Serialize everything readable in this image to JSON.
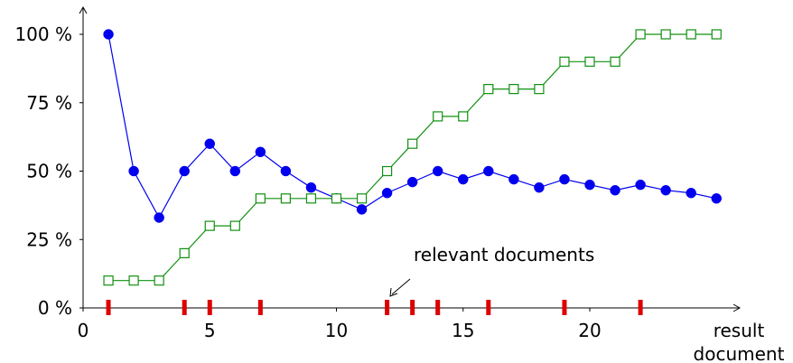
{
  "chart_data": {
    "type": "line",
    "x": [
      1,
      2,
      3,
      4,
      5,
      6,
      7,
      8,
      9,
      10,
      11,
      12,
      13,
      14,
      15,
      16,
      17,
      18,
      19,
      20,
      21,
      22,
      23,
      24,
      25
    ],
    "series": [
      {
        "color": "#0000ee",
        "marker": "filled-circle",
        "values": [
          100,
          50,
          33,
          50,
          60,
          50,
          57,
          50,
          44,
          40,
          36,
          42,
          46,
          50,
          47,
          50,
          47,
          44,
          47,
          45,
          43,
          45,
          43,
          42,
          40
        ]
      },
      {
        "color": "#109010",
        "marker": "open-square",
        "values": [
          10,
          10,
          10,
          20,
          30,
          30,
          40,
          40,
          40,
          40,
          40,
          50,
          60,
          70,
          70,
          80,
          80,
          80,
          90,
          90,
          90,
          100,
          100,
          100,
          100
        ]
      }
    ],
    "relevant_documents": [
      1,
      4,
      5,
      7,
      12,
      13,
      14,
      16,
      19,
      22
    ],
    "relevant_marker_color": "#dd0000",
    "annotation": "relevant documents",
    "xlabel_line1": "result",
    "xlabel_line2": "document",
    "ylabel": "",
    "xticks": [
      0,
      5,
      10,
      15,
      20
    ],
    "yticks": [
      0,
      25,
      50,
      75,
      100
    ],
    "ytick_suffix": " %",
    "xlim": [
      0,
      26
    ],
    "ylim": [
      0,
      100
    ],
    "grid": false
  }
}
